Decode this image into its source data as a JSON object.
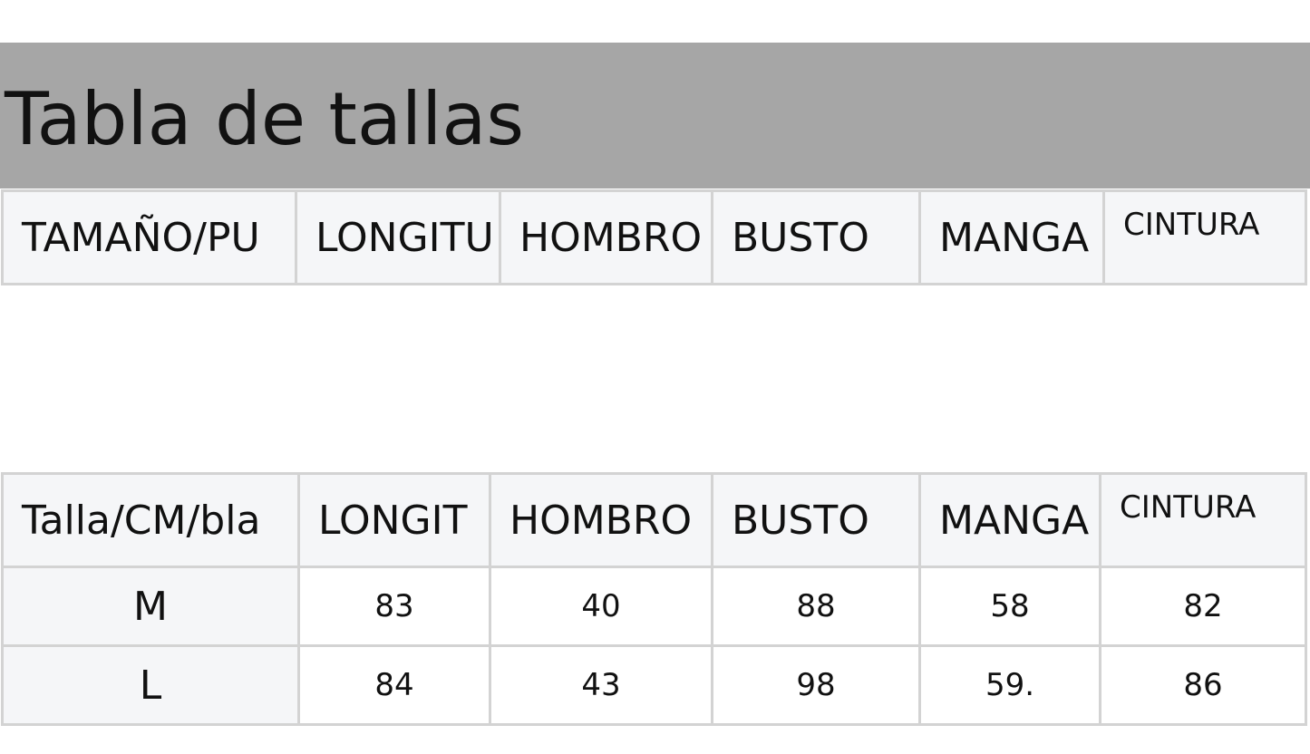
{
  "header": {
    "title": "Tabla de tallas"
  },
  "table1": {
    "header": [
      "TAMAÑO/PU",
      "LONGITU",
      "HOMBRO",
      "BUSTO",
      "MANGA",
      "CINTURA"
    ]
  },
  "table2": {
    "header": [
      "Talla/CM/bla",
      "LONGIT",
      "HOMBRO",
      "BUSTO",
      "MANGA",
      "CINTURA"
    ],
    "rows": [
      [
        "M",
        83,
        40,
        88,
        58,
        82
      ],
      [
        "L",
        84,
        43,
        98,
        "59.",
        86
      ]
    ]
  }
}
